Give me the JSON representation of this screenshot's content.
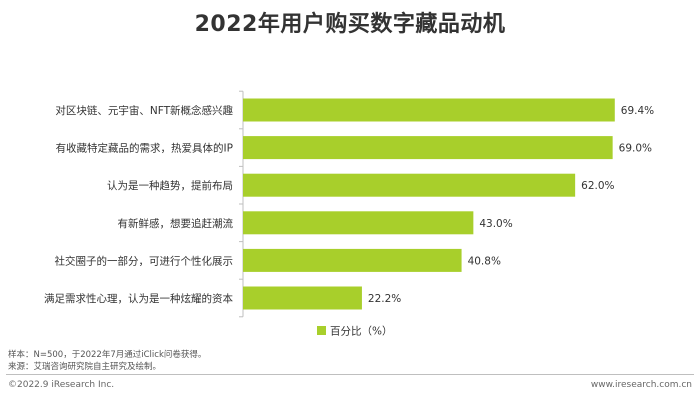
{
  "chart_data": {
    "type": "bar",
    "orientation": "horizontal",
    "title": "2022年用户购买数字藏品动机",
    "categories": [
      "对区块链、元宇宙、NFT新概念感兴趣",
      "有收藏特定藏品的需求，热爱具体的IP",
      "认为是一种趋势，提前布局",
      "有新鲜感，想要追赶潮流",
      "社交圈子的一部分，可进行个性化展示",
      "满足需求性心理，认为是一种炫耀的资本"
    ],
    "series": [
      {
        "name": "百分比（%）",
        "values": [
          69.4,
          69.0,
          62.0,
          43.0,
          40.8,
          22.2
        ],
        "labels": [
          "69.4%",
          "69.0%",
          "62.0%",
          "43.0%",
          "40.8%",
          "22.2%"
        ]
      }
    ],
    "xlim": [
      0,
      70
    ],
    "grid": false,
    "legend_position": "bottom-center",
    "bar_color": "#a8cf2b"
  },
  "footer": {
    "sample_note": "样本：N=500，于2022年7月通过iClick问卷获得。",
    "source_note": "来源：艾瑞咨询研究院自主研究及绘制。",
    "copyright": "©2022.9 iResearch Inc.",
    "website": "www.iresearch.com.cn"
  }
}
